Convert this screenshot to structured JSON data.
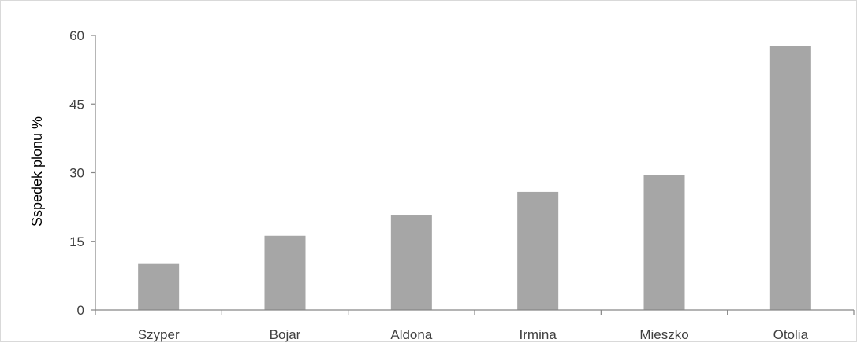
{
  "chart_data": {
    "type": "bar",
    "categories": [
      "Szyper",
      "Bojar",
      "Aldona",
      "Irmina",
      "Mieszko",
      "Otolia"
    ],
    "values": [
      10.2,
      16.2,
      20.8,
      25.8,
      29.4,
      57.6
    ],
    "title": "",
    "xlabel": "",
    "ylabel": "Sspedek plonu %",
    "ylim": [
      0,
      60
    ],
    "yticks": [
      0,
      15,
      30,
      45,
      60
    ],
    "grid": false,
    "legend": "none",
    "bar_color": "#a6a6a6",
    "axis_color": "#868686"
  }
}
